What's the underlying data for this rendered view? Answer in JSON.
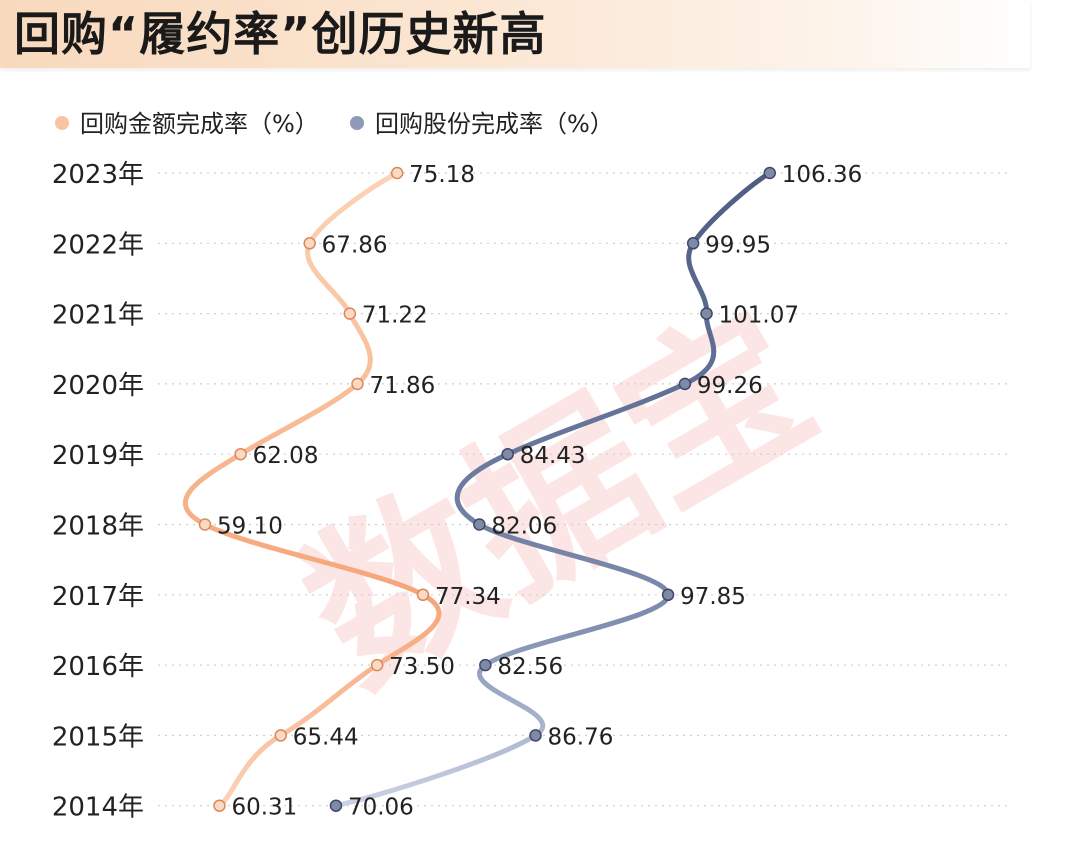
{
  "title": "回购“履约率”创历史新高",
  "chart_data": {
    "type": "line",
    "orientation": "horizontal",
    "categories": [
      "2023年",
      "2022年",
      "2021年",
      "2020年",
      "2019年",
      "2018年",
      "2017年",
      "2016年",
      "2015年",
      "2014年"
    ],
    "series": [
      {
        "name": "回购金额完成率（%）",
        "color": "#f5a26e",
        "values": [
          75.18,
          67.86,
          71.22,
          71.86,
          62.08,
          59.1,
          77.34,
          73.5,
          65.44,
          60.31
        ],
        "labels": [
          "75.18",
          "67.86",
          "71.22",
          "71.86",
          "62.08",
          "59.10",
          "77.34",
          "73.50",
          "65.44",
          "60.31"
        ]
      },
      {
        "name": "回购股份完成率（%）",
        "color": "#5b6a8f",
        "values": [
          106.36,
          99.95,
          101.07,
          99.26,
          84.43,
          82.06,
          97.85,
          82.56,
          86.76,
          70.06
        ],
        "labels": [
          "106.36",
          "99.95",
          "101.07",
          "99.26",
          "84.43",
          "82.06",
          "97.85",
          "82.56",
          "86.76",
          "70.06"
        ]
      }
    ],
    "grid": true,
    "legend": "top-left",
    "watermark": "数据宝"
  }
}
